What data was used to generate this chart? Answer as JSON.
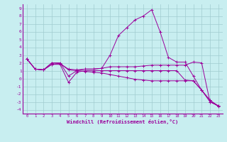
{
  "xlabel": "Windchill (Refroidissement éolien,°C)",
  "background_color": "#c8eef0",
  "line_color": "#9b009b",
  "grid_color": "#a0ccd0",
  "xlim": [
    -0.5,
    23.5
  ],
  "ylim": [
    -4.5,
    9.5
  ],
  "xticks": [
    0,
    1,
    2,
    3,
    4,
    5,
    6,
    7,
    8,
    9,
    10,
    11,
    12,
    13,
    14,
    15,
    16,
    17,
    18,
    19,
    20,
    21,
    22,
    23
  ],
  "yticks": [
    -4,
    -3,
    -2,
    -1,
    0,
    1,
    2,
    3,
    4,
    5,
    6,
    7,
    8,
    9
  ],
  "series": [
    {
      "x": [
        0,
        1,
        2,
        3,
        4,
        5,
        6,
        7,
        8,
        9,
        10,
        11,
        12,
        13,
        14,
        15,
        16,
        17,
        18,
        19,
        20,
        21,
        22,
        23
      ],
      "y": [
        2.5,
        1.2,
        1.1,
        2.0,
        2.0,
        0.3,
        1.0,
        1.2,
        1.2,
        1.3,
        3.0,
        5.5,
        6.5,
        7.5,
        8.0,
        8.8,
        6.0,
        2.7,
        2.1,
        2.1,
        0.3,
        -1.5,
        -3.0,
        -3.5
      ]
    },
    {
      "x": [
        0,
        1,
        2,
        3,
        4,
        5,
        6,
        7,
        8,
        9,
        10,
        11,
        12,
        13,
        14,
        15,
        16,
        17,
        18,
        19,
        20,
        21,
        22,
        23
      ],
      "y": [
        2.5,
        1.2,
        1.1,
        2.0,
        1.9,
        1.2,
        1.1,
        1.2,
        1.2,
        1.3,
        1.5,
        1.5,
        1.5,
        1.5,
        1.6,
        1.7,
        1.7,
        1.7,
        1.7,
        1.7,
        2.1,
        2.0,
        -3.0,
        -3.5
      ]
    },
    {
      "x": [
        0,
        1,
        2,
        3,
        4,
        5,
        6,
        7,
        8,
        9,
        10,
        11,
        12,
        13,
        14,
        15,
        16,
        17,
        18,
        19,
        20,
        21,
        22,
        23
      ],
      "y": [
        2.5,
        1.2,
        1.1,
        1.8,
        1.8,
        -0.5,
        0.8,
        1.0,
        1.0,
        1.0,
        1.0,
        1.0,
        1.0,
        1.0,
        1.0,
        1.0,
        1.0,
        1.0,
        1.0,
        -0.2,
        -0.3,
        -1.5,
        -2.8,
        -3.5
      ]
    },
    {
      "x": [
        0,
        1,
        2,
        3,
        4,
        5,
        6,
        7,
        8,
        9,
        10,
        11,
        12,
        13,
        14,
        15,
        16,
        17,
        18,
        19,
        20,
        21,
        22,
        23
      ],
      "y": [
        2.5,
        1.2,
        1.1,
        1.8,
        1.9,
        1.1,
        1.0,
        0.9,
        0.8,
        0.7,
        0.5,
        0.3,
        0.1,
        -0.1,
        -0.2,
        -0.3,
        -0.3,
        -0.3,
        -0.3,
        -0.3,
        -0.3,
        -1.5,
        -2.8,
        -3.6
      ]
    }
  ]
}
